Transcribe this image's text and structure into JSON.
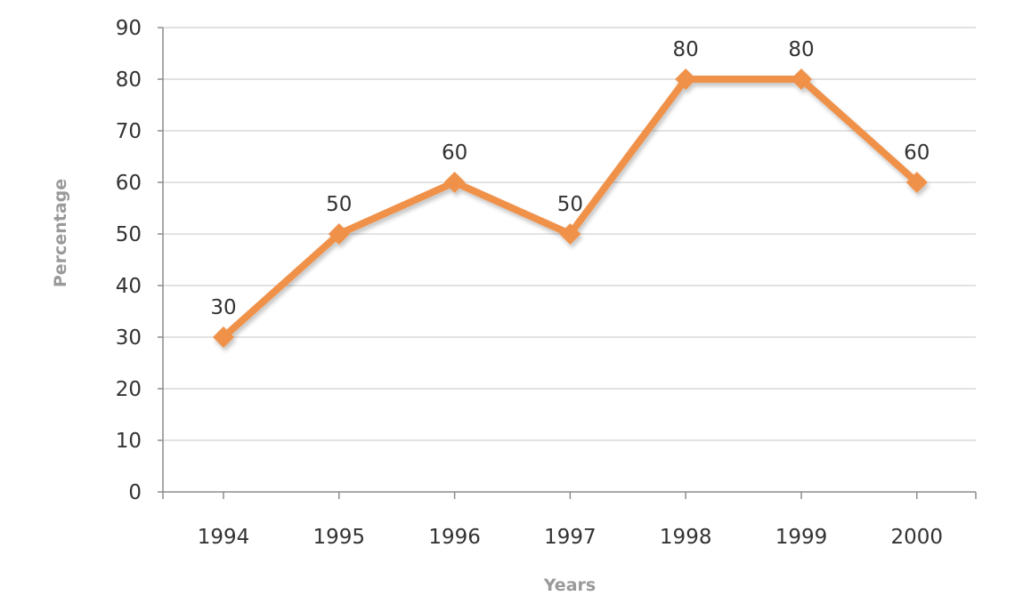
{
  "chart_data": {
    "type": "line",
    "categories": [
      "1994",
      "1995",
      "1996",
      "1997",
      "1998",
      "1999",
      "2000"
    ],
    "series": [
      {
        "values": [
          30,
          50,
          60,
          50,
          80,
          80,
          60
        ],
        "color": "#f0914a"
      }
    ],
    "data_labels": [
      "30",
      "50",
      "60",
      "50",
      "80",
      "80",
      "60"
    ],
    "xlabel": "Years",
    "ylabel": "Percentage",
    "ylim": [
      0,
      90
    ],
    "yticks": [
      0,
      10,
      20,
      30,
      40,
      50,
      60,
      70,
      80,
      90
    ],
    "grid": true,
    "marker": "diamond"
  }
}
